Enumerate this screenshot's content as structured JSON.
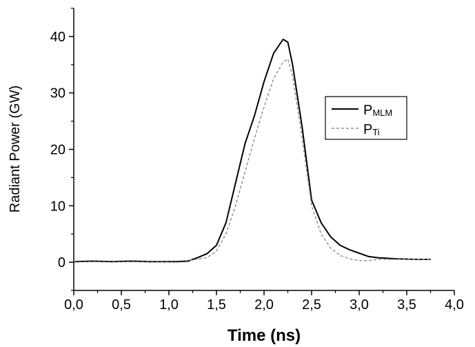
{
  "chart_data": {
    "type": "line",
    "title": "",
    "xlabel": "Time (ns)",
    "ylabel": "Radiant Power (GW)",
    "xlim": [
      0.0,
      4.0
    ],
    "ylim": [
      -5,
      45
    ],
    "xticks": [
      0.0,
      0.5,
      1.0,
      1.5,
      2.0,
      2.5,
      3.0,
      3.5,
      4.0
    ],
    "xtick_labels": [
      "0,0",
      "0,5",
      "1,0",
      "1,5",
      "2,0",
      "2,5",
      "3,0",
      "3,5",
      "4,0"
    ],
    "yticks": [
      0,
      10,
      20,
      30,
      40
    ],
    "ytick_labels": [
      "0",
      "10",
      "20",
      "30",
      "40"
    ],
    "grid": false,
    "legend_position": "right",
    "series": [
      {
        "name_main": "P",
        "name_sub": "MLM",
        "style": "solid",
        "color": "#000000",
        "x": [
          0.0,
          0.2,
          0.4,
          0.6,
          0.8,
          1.0,
          1.1,
          1.2,
          1.3,
          1.4,
          1.5,
          1.6,
          1.7,
          1.8,
          1.9,
          2.0,
          2.1,
          2.2,
          2.25,
          2.3,
          2.4,
          2.5,
          2.6,
          2.7,
          2.8,
          2.9,
          3.0,
          3.1,
          3.2,
          3.4,
          3.6,
          3.75
        ],
        "y": [
          0.1,
          0.2,
          0.1,
          0.2,
          0.1,
          0.1,
          0.1,
          0.2,
          0.8,
          1.5,
          3.0,
          7.0,
          14.0,
          21.0,
          26.0,
          32.0,
          37.0,
          39.5,
          39.0,
          35.0,
          24.0,
          11.0,
          7.0,
          4.5,
          3.0,
          2.2,
          1.6,
          1.0,
          0.8,
          0.6,
          0.5,
          0.5
        ]
      },
      {
        "name_main": "P",
        "name_sub": "Ti",
        "style": "dashed",
        "color": "#909090",
        "x": [
          0.0,
          0.2,
          0.4,
          0.6,
          0.8,
          1.0,
          1.2,
          1.4,
          1.5,
          1.6,
          1.7,
          1.8,
          1.9,
          2.0,
          2.1,
          2.2,
          2.25,
          2.3,
          2.4,
          2.5,
          2.6,
          2.7,
          2.8,
          2.9,
          3.0,
          3.1,
          3.2,
          3.4,
          3.6,
          3.75
        ],
        "y": [
          0.2,
          0.3,
          0.2,
          0.3,
          0.2,
          0.2,
          0.3,
          0.8,
          2.0,
          5.0,
          10.0,
          16.0,
          22.0,
          27.5,
          32.5,
          35.5,
          36.0,
          33.0,
          22.0,
          10.0,
          5.0,
          2.5,
          1.2,
          0.6,
          0.3,
          0.3,
          0.5,
          0.5,
          0.5,
          0.5
        ]
      }
    ]
  }
}
